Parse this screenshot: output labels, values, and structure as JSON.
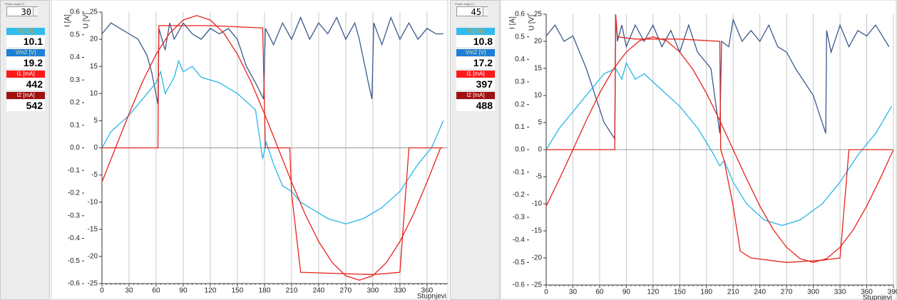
{
  "panels": [
    {
      "phase_label": "Phase angle [°]",
      "phase_value": "30",
      "readouts": [
        {
          "label": "V1 [V]",
          "value": "10.1",
          "color": "#33bbee"
        },
        {
          "label": "Vm2 [V]",
          "value": "19.2",
          "color": "#1f7fd6"
        },
        {
          "label": "I1 [mA]",
          "value": "442",
          "color": "#ff1a1a"
        },
        {
          "label": "I2 [mA]",
          "value": "542",
          "color": "#a01010"
        }
      ]
    },
    {
      "phase_label": "Phase angle [°]",
      "phase_value": "45",
      "readouts": [
        {
          "label": "V1 [V]",
          "value": "10.8",
          "color": "#33bbee"
        },
        {
          "label": "Vm2 [V]",
          "value": "17.2",
          "color": "#1f7fd6"
        },
        {
          "label": "I1 [mA]",
          "value": "397",
          "color": "#ff1a1a"
        },
        {
          "label": "I2 [mA]",
          "value": "488",
          "color": "#a01010"
        }
      ]
    }
  ],
  "chart_data": [
    {
      "type": "line",
      "xlabel": "Stupnjevi",
      "ylabel": "U [V]",
      "y2label": "I [A]",
      "xlim": [
        0,
        383
      ],
      "xticks": [
        0,
        30,
        60,
        90,
        120,
        150,
        180,
        210,
        240,
        270,
        300,
        330,
        360
      ],
      "ylim": [
        -25,
        25
      ],
      "yticks": [
        -25,
        -20,
        -15,
        -10,
        -5,
        0,
        5,
        10,
        15,
        20,
        25
      ],
      "y2lim": [
        -0.6,
        0.6
      ],
      "y2ticks": [
        -0.6,
        -0.5,
        -0.4,
        -0.3,
        -0.2,
        -0.1,
        {
          "value": 0,
          "label": "0.0"
        },
        0.1,
        0.2,
        0.3,
        0.4,
        0.5,
        0.6
      ],
      "grid": true,
      "series": [
        {
          "color": "#3a5a8c",
          "x": [
            0,
            10,
            20,
            30,
            40,
            50,
            55,
            62,
            63,
            70,
            75,
            80,
            90,
            100,
            110,
            120,
            130,
            140,
            150,
            160,
            170,
            179,
            181,
            190,
            200,
            210,
            220,
            230,
            240,
            250,
            260,
            270,
            280,
            285,
            295,
            299,
            301,
            310,
            320,
            330,
            340,
            350,
            360,
            370,
            378
          ],
          "values": [
            21,
            23,
            22,
            21,
            20,
            17,
            14,
            8,
            22,
            18,
            23,
            20,
            23,
            21,
            20,
            22,
            21,
            22,
            20,
            15,
            12,
            9,
            22,
            19,
            23,
            20,
            24,
            20,
            23,
            21,
            24,
            20,
            23,
            20,
            12,
            9,
            23,
            19,
            24,
            20,
            23,
            20,
            22,
            21,
            21
          ]
        },
        {
          "color": "#29b6e8",
          "x": [
            0,
            10,
            30,
            45,
            60,
            65,
            70,
            80,
            85,
            90,
            100,
            110,
            130,
            150,
            170,
            178,
            182,
            190,
            200,
            210,
            220,
            230,
            250,
            270,
            290,
            310,
            330,
            350,
            365,
            378
          ],
          "values": [
            0,
            3,
            6,
            9,
            12,
            14,
            10,
            13,
            16,
            14,
            15,
            13,
            12,
            10,
            7,
            -2,
            1,
            -3,
            -7,
            -8,
            -10,
            -11,
            -13,
            -14,
            -13,
            -11,
            -8,
            -3,
            0,
            5
          ]
        },
        {
          "color": "#e8231c",
          "axis": "y2",
          "x": [
            0,
            62,
            63,
            120,
            178,
            181,
            208,
            210,
            220,
            300,
            330,
            340,
            378
          ],
          "values": [
            0,
            0,
            0.54,
            0.54,
            0.53,
            0,
            0,
            -0.2,
            -0.55,
            -0.56,
            -0.55,
            0,
            0
          ]
        },
        {
          "color": "#e8231c",
          "axis": "y2",
          "x": [
            0,
            15,
            30,
            45,
            60,
            75,
            90,
            105,
            120,
            135,
            150,
            165,
            180,
            195,
            210,
            225,
            240,
            255,
            270,
            285,
            300,
            315,
            330,
            345,
            360,
            375
          ],
          "values": [
            -0.151,
            0,
            0.151,
            0.293,
            0.414,
            0.507,
            0.565,
            0.585,
            0.565,
            0.507,
            0.414,
            0.293,
            0.151,
            0,
            -0.151,
            -0.293,
            -0.414,
            -0.507,
            -0.565,
            -0.585,
            -0.565,
            -0.507,
            -0.414,
            -0.293,
            -0.151,
            0
          ]
        }
      ]
    },
    {
      "type": "line",
      "xlabel": "Stupnjevi",
      "ylabel": "U [V]",
      "y2label": "I [A]",
      "xlim": [
        0,
        390
      ],
      "xticks": [
        0,
        30,
        60,
        90,
        120,
        150,
        180,
        210,
        240,
        270,
        300,
        330,
        360,
        390
      ],
      "ylim": [
        -25,
        25
      ],
      "yticks": [
        -25,
        -20,
        -15,
        -10,
        -5,
        0,
        5,
        10,
        15,
        20,
        25
      ],
      "y2lim": [
        -0.6,
        0.6
      ],
      "y2ticks": [
        -0.6,
        -0.5,
        -0.4,
        -0.3,
        -0.2,
        -0.1,
        {
          "value": 0,
          "label": "0.0"
        },
        0.1,
        0.2,
        0.3,
        0.4,
        0.5,
        0.6
      ],
      "grid": true,
      "series": [
        {
          "color": "#3a5a8c",
          "x": [
            0,
            10,
            20,
            30,
            45,
            55,
            65,
            77,
            78,
            80,
            85,
            90,
            100,
            110,
            120,
            130,
            140,
            150,
            160,
            170,
            185,
            195,
            197,
            205,
            210,
            220,
            230,
            240,
            250,
            260,
            270,
            280,
            300,
            314,
            315,
            320,
            330,
            340,
            350,
            360,
            370,
            385
          ],
          "values": [
            21,
            23,
            20,
            21,
            15,
            10,
            5,
            2,
            25,
            20,
            23,
            19,
            23,
            20,
            23,
            19,
            22,
            18,
            23,
            18,
            15,
            3,
            20,
            19,
            24,
            20,
            22,
            20,
            23,
            19,
            18,
            15,
            10,
            3,
            22,
            18,
            23,
            19,
            22,
            21,
            23,
            19
          ]
        },
        {
          "color": "#29b6e8",
          "x": [
            0,
            15,
            35,
            50,
            65,
            78,
            85,
            90,
            100,
            110,
            130,
            150,
            170,
            185,
            195,
            200,
            210,
            225,
            245,
            265,
            285,
            310,
            330,
            350,
            370,
            388
          ],
          "values": [
            0,
            4,
            8,
            11,
            14,
            15,
            13,
            16,
            13,
            14,
            11,
            8,
            4,
            0,
            -3,
            -2,
            -6,
            -10,
            -13,
            -14,
            -13,
            -10,
            -6,
            -1,
            3,
            8
          ]
        },
        {
          "color": "#e8231c",
          "axis": "y2",
          "x": [
            0,
            77,
            78,
            80,
            100,
            150,
            195,
            196,
            200,
            210,
            218,
            230,
            270,
            310,
            330,
            340,
            388
          ],
          "values": [
            0,
            0,
            0.6,
            0.5,
            0.49,
            0.49,
            0.48,
            0,
            -0.05,
            -0.25,
            -0.45,
            -0.48,
            -0.5,
            -0.49,
            -0.48,
            0,
            0
          ]
        },
        {
          "color": "#e8231c",
          "axis": "y2",
          "x": [
            0,
            15,
            30,
            45,
            60,
            75,
            90,
            105,
            120,
            135,
            150,
            165,
            180,
            195,
            210,
            225,
            240,
            255,
            270,
            285,
            300,
            315,
            330,
            345,
            360,
            375,
            390
          ],
          "values": [
            -0.25,
            -0.129,
            0,
            0.129,
            0.25,
            0.354,
            0.433,
            0.483,
            0.5,
            0.483,
            0.433,
            0.354,
            0.25,
            0.129,
            0,
            -0.129,
            -0.25,
            -0.354,
            -0.433,
            -0.483,
            -0.5,
            -0.483,
            -0.433,
            -0.354,
            -0.25,
            -0.129,
            0
          ]
        }
      ]
    }
  ]
}
